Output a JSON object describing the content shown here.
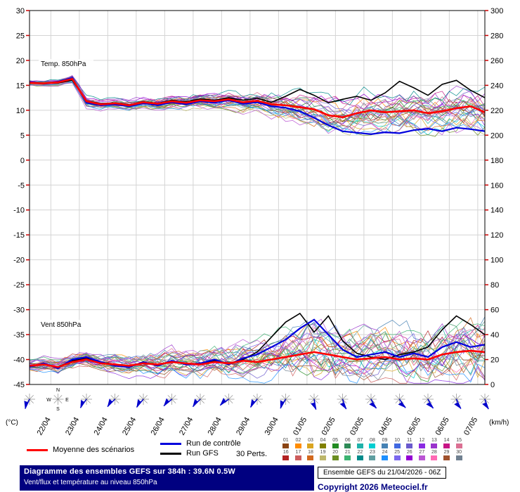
{
  "legend": {
    "mean_label": "Moyenne des scénarios",
    "control_label": "Run de contrôle",
    "gfs_label": "Run GFS",
    "perts_label": "30 Perts."
  },
  "footer": {
    "title": "Diagramme des ensembles GEFS sur 384h : 39.6N 0.5W",
    "subtitle": "Vent/flux et température au niveau 850hPa",
    "run_info": "Ensemble GEFS du 21/04/2026 - 06Z",
    "copyright": "Copyright 2026 Meteociel.fr"
  },
  "chart_data": {
    "type": "line",
    "title": "Diagramme des ensembles GEFS sur 384h : 39.6N 0.5W",
    "subtitle": "Vent/flux et température au niveau 850hPa",
    "run": "Ensemble GEFS du 21/04/2026 - 06Z",
    "duration_hours": 384,
    "x_labels": [
      "22/04",
      "23/04",
      "24/04",
      "25/04",
      "26/04",
      "27/04",
      "28/04",
      "29/04",
      "30/04",
      "01/05",
      "02/05",
      "03/05",
      "04/05",
      "05/05",
      "06/05",
      "07/05"
    ],
    "left_axis": {
      "label": "(°C)",
      "min": -45,
      "max": 30,
      "ticks": [
        30,
        25,
        20,
        15,
        10,
        5,
        0,
        -5,
        -10,
        -15,
        -20,
        -25,
        -30,
        -35,
        -40,
        -45
      ]
    },
    "right_axis": {
      "label": "(km/h)",
      "min": 0,
      "max": 300,
      "ticks": [
        300,
        280,
        260,
        240,
        220,
        200,
        180,
        160,
        140,
        120,
        100,
        80,
        60,
        40,
        20,
        0
      ]
    },
    "series_colors": {
      "mean": "#ff0000",
      "control": "#0000dd",
      "gfs": "#000000"
    },
    "temp_850": {
      "label": "Temp. 850hPa",
      "time_step_hours": 12,
      "mean": [
        15.5,
        15.4,
        15.6,
        16.3,
        11.8,
        11.2,
        11.4,
        11.0,
        11.6,
        11.3,
        11.8,
        11.5,
        12.0,
        11.8,
        12.2,
        11.6,
        11.9,
        11.2,
        11.0,
        10.6,
        10.2,
        9.0,
        8.6,
        9.4,
        10.0,
        9.6,
        9.8,
        10.0,
        9.4,
        9.8,
        10.4,
        10.8,
        9.6
      ],
      "control": [
        15.6,
        15.3,
        15.7,
        16.5,
        11.5,
        11.0,
        11.2,
        10.8,
        11.4,
        11.0,
        11.6,
        11.2,
        11.8,
        11.5,
        12.0,
        11.3,
        11.6,
        10.8,
        10.5,
        9.8,
        8.5,
        7.0,
        5.8,
        5.5,
        5.2,
        5.6,
        5.4,
        6.0,
        6.3,
        5.8,
        6.5,
        6.2,
        5.8
      ],
      "gfs": [
        15.5,
        15.4,
        15.5,
        16.0,
        11.9,
        11.3,
        11.5,
        11.1,
        11.7,
        11.4,
        12.0,
        11.7,
        12.3,
        12.0,
        12.5,
        12.0,
        12.4,
        11.6,
        12.8,
        14.2,
        13.0,
        11.5,
        12.2,
        12.8,
        12.0,
        13.5,
        15.8,
        14.5,
        13.0,
        15.2,
        16.0,
        14.0,
        12.5
      ]
    },
    "wind_850": {
      "label": "Vent 850hPa",
      "time_step_hours": 12,
      "mean_kmh": [
        15,
        16,
        14,
        18,
        20,
        17,
        16,
        15,
        17,
        16,
        18,
        17,
        16,
        18,
        17,
        19,
        18,
        20,
        22,
        24,
        26,
        24,
        22,
        20,
        21,
        22,
        20,
        21,
        20,
        24,
        26,
        27,
        26
      ],
      "control_kmh": [
        14,
        17,
        13,
        20,
        22,
        18,
        15,
        14,
        18,
        15,
        19,
        16,
        17,
        20,
        16,
        21,
        24,
        30,
        36,
        45,
        52,
        40,
        28,
        22,
        24,
        26,
        22,
        25,
        22,
        30,
        34,
        30,
        32
      ],
      "gfs_kmh": [
        15,
        16,
        14,
        19,
        21,
        18,
        16,
        15,
        17,
        16,
        18,
        17,
        16,
        19,
        17,
        20,
        26,
        38,
        50,
        57,
        42,
        55,
        35,
        25,
        22,
        20,
        24,
        26,
        30,
        44,
        55,
        48,
        40
      ]
    },
    "members": {
      "count": 30,
      "temp_spread": [
        0.5,
        0.6,
        0.7,
        0.9,
        1.2,
        1.0,
        1.0,
        1.1,
        1.2,
        1.2,
        1.3,
        1.4,
        1.5,
        1.6,
        1.8,
        2.0,
        2.2,
        2.5,
        2.8,
        3.2,
        3.5,
        3.8,
        4.0,
        4.0,
        4.2,
        4.2,
        4.3,
        4.3,
        4.4,
        4.4,
        4.5,
        4.5,
        4.5
      ],
      "wind_spread": [
        4,
        5,
        5,
        6,
        6,
        6,
        7,
        7,
        8,
        8,
        9,
        9,
        10,
        10,
        11,
        12,
        13,
        15,
        17,
        20,
        22,
        22,
        20,
        18,
        18,
        19,
        20,
        20,
        21,
        22,
        23,
        24,
        24
      ],
      "palette": [
        "#8b4513",
        "#ff8c00",
        "#daa520",
        "#808000",
        "#228b22",
        "#2e8b57",
        "#20b2aa",
        "#00ced1",
        "#4682b4",
        "#4169e1",
        "#6a5acd",
        "#8a2be2",
        "#9932cc",
        "#c71585",
        "#db7093",
        "#b22222",
        "#cd5c5c",
        "#d2691e",
        "#bdb76b",
        "#6b8e23",
        "#3cb371",
        "#008b8b",
        "#5f9ea0",
        "#1e90ff",
        "#7b68ee",
        "#9400d3",
        "#ba55d3",
        "#ff69b4",
        "#a0522d",
        "#708090"
      ]
    },
    "wind_barbs": {
      "color": "#0000cc",
      "compass_letters": [
        "N",
        "E",
        "S",
        "W"
      ],
      "angles": [
        205,
        0,
        215,
        225,
        220,
        230,
        225,
        235,
        220,
        210,
        170,
        160,
        150,
        145,
        150,
        155,
        160
      ]
    }
  }
}
